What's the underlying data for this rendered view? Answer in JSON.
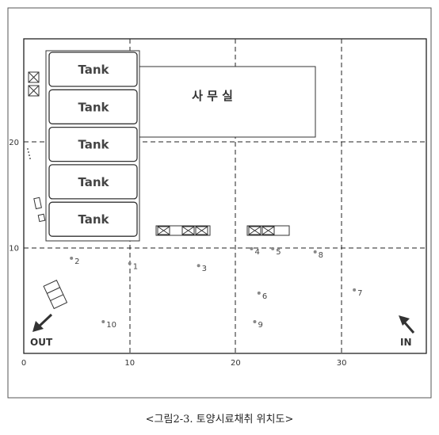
{
  "figure": {
    "caption": "<그림2-3. 토양시료채취 위치도>",
    "office_label": "사 무 실",
    "out_label": "OUT",
    "in_label": "IN"
  },
  "tanks": [
    {
      "label": "Tank"
    },
    {
      "label": "Tank"
    },
    {
      "label": "Tank"
    },
    {
      "label": "Tank"
    },
    {
      "label": "Tank"
    }
  ],
  "x_ticks": [
    {
      "label": "0"
    },
    {
      "label": "10"
    },
    {
      "label": "20"
    },
    {
      "label": "30"
    }
  ],
  "y_ticks": [
    {
      "label": "10"
    },
    {
      "label": "20"
    }
  ],
  "sample_points": [
    {
      "label": "1",
      "x": 10,
      "y": 8.5
    },
    {
      "label": "2",
      "x": 4.5,
      "y": 9
    },
    {
      "label": "3",
      "x": 16.5,
      "y": 8.3
    },
    {
      "label": "4",
      "x": 21.5,
      "y": 9.9
    },
    {
      "label": "5",
      "x": 23.5,
      "y": 9.9
    },
    {
      "label": "6",
      "x": 22.2,
      "y": 5.7
    },
    {
      "label": "7",
      "x": 31.2,
      "y": 6
    },
    {
      "label": "8",
      "x": 27.5,
      "y": 9.6
    },
    {
      "label": "9",
      "x": 21.8,
      "y": 3
    },
    {
      "label": "10",
      "x": 7.5,
      "y": 3
    }
  ]
}
